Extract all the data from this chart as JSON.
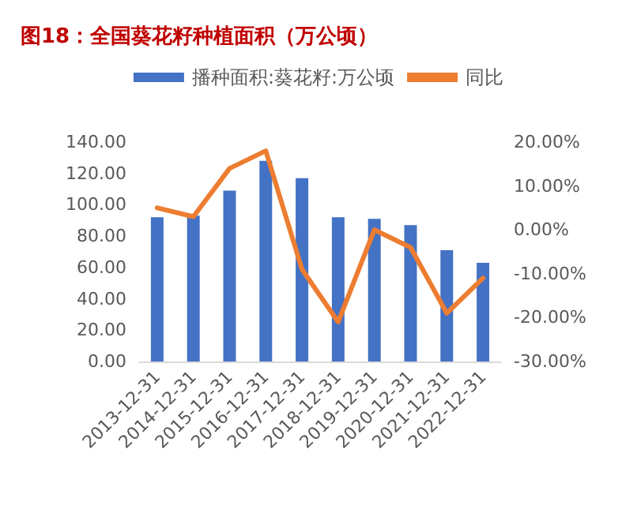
{
  "chart_data": {
    "type": "bar",
    "title": "图18：全国葵花籽种植面积（万公顷）",
    "categories": [
      "2013-12-31",
      "2014-12-31",
      "2015-12-31",
      "2016-12-31",
      "2017-12-31",
      "2018-12-31",
      "2019-12-31",
      "2020-12-31",
      "2021-12-31",
      "2022-12-31"
    ],
    "series": [
      {
        "name": "播种面积:葵花籽:万公顷",
        "color": "#4472c4",
        "values": [
          92,
          93,
          109,
          128,
          117,
          92,
          91,
          87,
          71,
          63
        ]
      },
      {
        "name": "同比",
        "type": "line",
        "axis": "y2",
        "color": "#ed7d31",
        "values": [
          5,
          3,
          14,
          18,
          -9,
          -21,
          0,
          -4,
          -19,
          -11
        ]
      }
    ],
    "ylim": [
      0,
      140
    ],
    "yticks": [
      {
        "value": 0,
        "label": "0.00"
      },
      {
        "value": 20,
        "label": "20.00"
      },
      {
        "value": 40,
        "label": "40.00"
      },
      {
        "value": 60,
        "label": "60.00"
      },
      {
        "value": 80,
        "label": "80.00"
      },
      {
        "value": 100,
        "label": "100.00"
      },
      {
        "value": 120,
        "label": "120.00"
      },
      {
        "value": 140,
        "label": "140.00"
      }
    ],
    "y2lim": [
      -30,
      20
    ],
    "y2ticks": [
      {
        "value": -30,
        "label": "-30.00%"
      },
      {
        "value": -20,
        "label": "-20.00%"
      },
      {
        "value": -10,
        "label": "-10.00%"
      },
      {
        "value": 0,
        "label": "0.00%"
      },
      {
        "value": 10,
        "label": "10.00%"
      },
      {
        "value": 20,
        "label": "20.00%"
      }
    ],
    "legend": "top",
    "grid": false,
    "marker": "none",
    "line_style": "solid"
  }
}
